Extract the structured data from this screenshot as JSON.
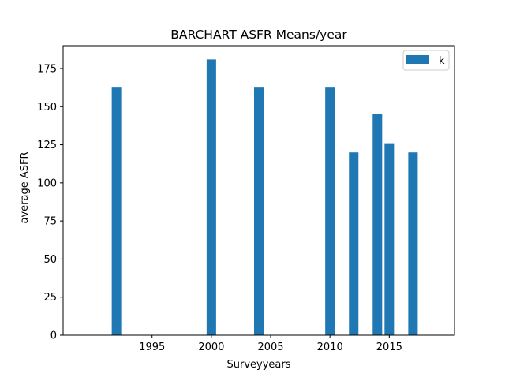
{
  "chart_data": {
    "type": "bar",
    "title": "BARCHART ASFR Means/year",
    "xlabel": "Surveyyears",
    "ylabel": "average ASFR",
    "x": [
      1992,
      2000,
      2004,
      2010,
      2012,
      2014,
      2015,
      2017
    ],
    "series": [
      {
        "name": "k",
        "values": [
          163,
          181,
          163,
          163,
          120,
          145,
          126,
          120
        ],
        "color": "#1f77b4"
      }
    ],
    "xlim": [
      1987.5,
      2020.5
    ],
    "ylim": [
      0,
      190
    ],
    "xticks": [
      1995,
      2000,
      2005,
      2010,
      2015
    ],
    "yticks": [
      0,
      25,
      50,
      75,
      100,
      125,
      150,
      175
    ],
    "bar_width": 0.8,
    "legend": {
      "position": "top-right"
    },
    "grid": false
  }
}
